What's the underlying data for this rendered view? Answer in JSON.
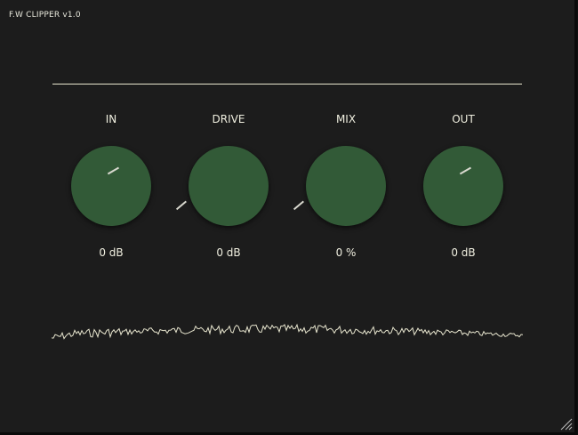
{
  "window": {
    "title": "F.W CLIPPER v1.0"
  },
  "knobs": [
    {
      "id": "in",
      "label": "IN",
      "value": "0 dB",
      "pointer_angle_deg": -30
    },
    {
      "id": "drive",
      "label": "DRIVE",
      "value": "0 dB",
      "pointer_angle_deg": 140
    },
    {
      "id": "mix",
      "label": "MIX",
      "value": "0 %",
      "pointer_angle_deg": 140
    },
    {
      "id": "out",
      "label": "OUT",
      "value": "0 dB",
      "pointer_angle_deg": -30
    }
  ],
  "colors": {
    "background": "#1c1c1c",
    "knob": "#325a37",
    "text": "#f0efe0",
    "waveform": "#e8e6cf"
  },
  "icons": {
    "resize": "resize-grip-icon"
  }
}
